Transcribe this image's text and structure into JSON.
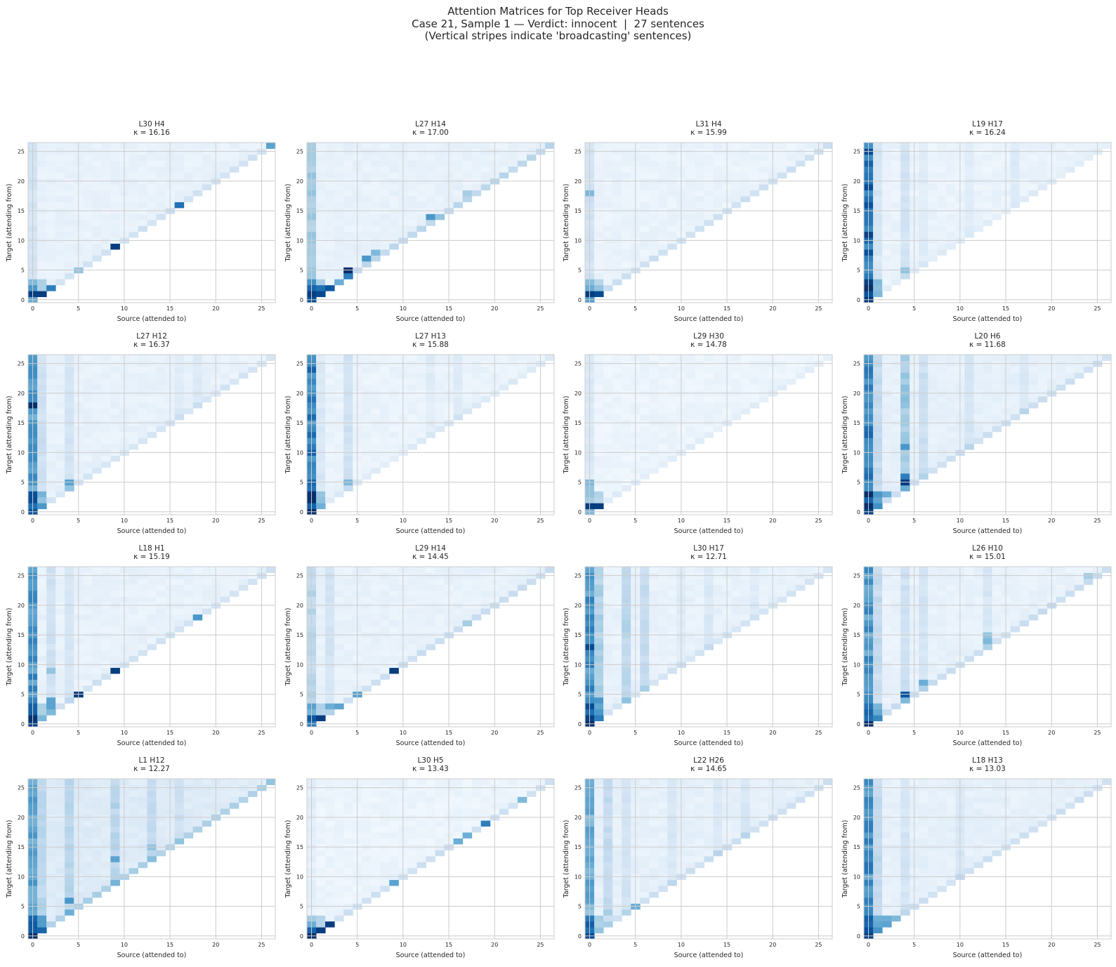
{
  "figure": {
    "title_lines": [
      "Attention Matrices for Top Receiver Heads",
      "Case 21, Sample 1 — Verdict: innocent  |  27 sentences",
      "(Vertical stripes indicate 'broadcasting' sentences)"
    ]
  },
  "chart_data": {
    "type": "heatmap",
    "colormap": "Blues",
    "n_sentences": 27,
    "xlabel": "Source (attended to)",
    "ylabel": "Target (attending from)",
    "ticks": [
      0,
      5,
      10,
      15,
      20,
      25
    ],
    "tick_labels": [
      "0",
      "5",
      "10",
      "15",
      "20",
      "25"
    ],
    "axis_range": [
      -0.5,
      26.5
    ],
    "value_range": [
      0,
      1
    ],
    "mask": "lower-triangular (source ≤ target)",
    "grid": true,
    "panels": [
      {
        "title": "L30 H4",
        "kappa_label": "κ = 16.16",
        "kappa": 16.16,
        "base": 0.05,
        "diag": 0.12,
        "stripes": [
          {
            "col": 0,
            "w": 0.12
          }
        ],
        "hot": [
          {
            "r": 1,
            "c": 0,
            "v": 0.95
          },
          {
            "r": 1,
            "c": 1,
            "v": 0.95
          },
          {
            "r": 2,
            "c": 0,
            "v": 0.6
          },
          {
            "r": 2,
            "c": 2,
            "v": 0.7
          },
          {
            "r": 5,
            "c": 5,
            "v": 0.4
          },
          {
            "r": 9,
            "c": 9,
            "v": 0.95
          },
          {
            "r": 16,
            "c": 16,
            "v": 0.75
          },
          {
            "r": 26,
            "c": 26,
            "v": 0.55
          }
        ]
      },
      {
        "title": "L27 H14",
        "kappa_label": "κ = 17.00",
        "kappa": 17.0,
        "base": 0.05,
        "diag": 0.2,
        "stripes": [
          {
            "col": 0,
            "w": 0.35
          }
        ],
        "hot": [
          {
            "r": 1,
            "c": 0,
            "v": 0.95
          },
          {
            "r": 1,
            "c": 1,
            "v": 0.9
          },
          {
            "r": 2,
            "c": 0,
            "v": 0.8
          },
          {
            "r": 2,
            "c": 1,
            "v": 0.75
          },
          {
            "r": 2,
            "c": 2,
            "v": 0.85
          },
          {
            "r": 3,
            "c": 3,
            "v": 0.5
          },
          {
            "r": 4,
            "c": 4,
            "v": 0.7
          },
          {
            "r": 5,
            "c": 4,
            "v": 1.0
          },
          {
            "r": 7,
            "c": 6,
            "v": 0.6
          },
          {
            "r": 8,
            "c": 7,
            "v": 0.45
          },
          {
            "r": 14,
            "c": 13,
            "v": 0.6
          },
          {
            "r": 14,
            "c": 14,
            "v": 0.4
          },
          {
            "r": 18,
            "c": 17,
            "v": 0.35
          }
        ]
      },
      {
        "title": "L31 H4",
        "kappa_label": "κ = 15.99",
        "kappa": 15.99,
        "base": 0.04,
        "diag": 0.15,
        "stripes": [
          {
            "col": 0,
            "w": 0.15
          }
        ],
        "hot": [
          {
            "r": 1,
            "c": 0,
            "v": 0.95
          },
          {
            "r": 1,
            "c": 1,
            "v": 0.9
          },
          {
            "r": 2,
            "c": 0,
            "v": 0.5
          },
          {
            "r": 2,
            "c": 1,
            "v": 0.4
          },
          {
            "r": 18,
            "c": 0,
            "v": 0.45
          }
        ]
      },
      {
        "title": "L19 H17",
        "kappa_label": "κ = 16.24",
        "kappa": 16.24,
        "base": 0.04,
        "diag": 0.05,
        "stripes": [
          {
            "col": 0,
            "w": 0.85
          },
          {
            "col": 1,
            "w": 0.12
          },
          {
            "col": 4,
            "w": 0.15
          },
          {
            "col": 6,
            "w": 0.06
          },
          {
            "col": 11,
            "w": 0.06
          },
          {
            "col": 16,
            "w": 0.08
          }
        ],
        "hot": [
          {
            "r": 5,
            "c": 4,
            "v": 0.4
          }
        ]
      },
      {
        "title": "L27 H12",
        "kappa_label": "κ = 16.37",
        "kappa": 16.37,
        "base": 0.05,
        "diag": 0.1,
        "stripes": [
          {
            "col": 0,
            "w": 0.6
          },
          {
            "col": 1,
            "w": 0.15
          },
          {
            "col": 4,
            "w": 0.12
          },
          {
            "col": 16,
            "w": 0.06
          },
          {
            "col": 18,
            "w": 0.06
          }
        ],
        "hot": [
          {
            "r": 18,
            "c": 0,
            "v": 1.0
          },
          {
            "r": 5,
            "c": 4,
            "v": 0.55
          },
          {
            "r": 1,
            "c": 1,
            "v": 0.6
          },
          {
            "r": 4,
            "c": 4,
            "v": 0.4
          }
        ]
      },
      {
        "title": "L27 H13",
        "kappa_label": "κ = 15.88",
        "kappa": 15.88,
        "base": 0.04,
        "diag": 0.06,
        "stripes": [
          {
            "col": 0,
            "w": 0.75
          },
          {
            "col": 1,
            "w": 0.1
          },
          {
            "col": 4,
            "w": 0.15
          },
          {
            "col": 13,
            "w": 0.06
          },
          {
            "col": 16,
            "w": 0.06
          }
        ],
        "hot": [
          {
            "r": 5,
            "c": 4,
            "v": 0.45
          }
        ]
      },
      {
        "title": "L29 H30",
        "kappa_label": "κ = 14.78",
        "kappa": 14.78,
        "base": 0.03,
        "diag": 0.05,
        "stripes": [
          {
            "col": 0,
            "w": 0.1
          }
        ],
        "hot": [
          {
            "r": 1,
            "c": 0,
            "v": 0.95
          },
          {
            "r": 1,
            "c": 1,
            "v": 0.95
          },
          {
            "r": 5,
            "c": 0,
            "v": 0.45
          },
          {
            "r": 4,
            "c": 0,
            "v": 0.4
          }
        ]
      },
      {
        "title": "L20 H6",
        "kappa_label": "κ = 11.68",
        "kappa": 11.68,
        "base": 0.06,
        "diag": 0.12,
        "stripes": [
          {
            "col": 0,
            "w": 0.7
          },
          {
            "col": 1,
            "w": 0.2
          },
          {
            "col": 4,
            "w": 0.35
          },
          {
            "col": 6,
            "w": 0.15
          },
          {
            "col": 11,
            "w": 0.1
          },
          {
            "col": 17,
            "w": 0.08
          }
        ],
        "hot": [
          {
            "r": 5,
            "c": 4,
            "v": 0.95
          },
          {
            "r": 6,
            "c": 4,
            "v": 0.7
          },
          {
            "r": 3,
            "c": 1,
            "v": 0.6
          },
          {
            "r": 3,
            "c": 2,
            "v": 0.5
          },
          {
            "r": 11,
            "c": 4,
            "v": 0.6
          }
        ]
      },
      {
        "title": "L18 H1",
        "kappa_label": "κ = 15.19",
        "kappa": 15.19,
        "base": 0.05,
        "diag": 0.12,
        "stripes": [
          {
            "col": 0,
            "w": 0.65
          },
          {
            "col": 2,
            "w": 0.15
          },
          {
            "col": 4,
            "w": 0.1
          }
        ],
        "hot": [
          {
            "r": 5,
            "c": 5,
            "v": 0.95
          },
          {
            "r": 9,
            "c": 9,
            "v": 0.95
          },
          {
            "r": 18,
            "c": 18,
            "v": 0.6
          },
          {
            "r": 4,
            "c": 2,
            "v": 0.55
          },
          {
            "r": 3,
            "c": 2,
            "v": 0.55
          },
          {
            "r": 9,
            "c": 2,
            "v": 0.4
          },
          {
            "r": 2,
            "c": 2,
            "v": 0.45
          }
        ]
      },
      {
        "title": "L29 H14",
        "kappa_label": "κ = 14.45",
        "kappa": 14.45,
        "base": 0.05,
        "diag": 0.15,
        "stripes": [
          {
            "col": 0,
            "w": 0.25
          },
          {
            "col": 2,
            "w": 0.12
          }
        ],
        "hot": [
          {
            "r": 1,
            "c": 0,
            "v": 0.85
          },
          {
            "r": 1,
            "c": 1,
            "v": 0.95
          },
          {
            "r": 3,
            "c": 2,
            "v": 0.5
          },
          {
            "r": 3,
            "c": 3,
            "v": 0.55
          },
          {
            "r": 5,
            "c": 5,
            "v": 0.55
          },
          {
            "r": 9,
            "c": 9,
            "v": 0.95
          },
          {
            "r": 17,
            "c": 17,
            "v": 0.35
          }
        ]
      },
      {
        "title": "L30 H17",
        "kappa_label": "κ = 12.71",
        "kappa": 12.71,
        "base": 0.05,
        "diag": 0.1,
        "stripes": [
          {
            "col": 0,
            "w": 0.65
          },
          {
            "col": 1,
            "w": 0.3
          },
          {
            "col": 4,
            "w": 0.25
          },
          {
            "col": 6,
            "w": 0.2
          },
          {
            "col": 10,
            "w": 0.06
          },
          {
            "col": 13,
            "w": 0.08
          },
          {
            "col": 18,
            "w": 0.06
          }
        ],
        "hot": [
          {
            "r": 4,
            "c": 1,
            "v": 0.6
          },
          {
            "r": 13,
            "c": 0,
            "v": 0.9
          }
        ]
      },
      {
        "title": "L26 H10",
        "kappa_label": "κ = 15.01",
        "kappa": 15.01,
        "base": 0.05,
        "diag": 0.15,
        "stripes": [
          {
            "col": 0,
            "w": 0.6
          },
          {
            "col": 1,
            "w": 0.2
          },
          {
            "col": 4,
            "w": 0.15
          },
          {
            "col": 6,
            "w": 0.12
          },
          {
            "col": 13,
            "w": 0.1
          }
        ],
        "hot": [
          {
            "r": 5,
            "c": 4,
            "v": 0.85
          },
          {
            "r": 7,
            "c": 6,
            "v": 0.5
          },
          {
            "r": 14,
            "c": 13,
            "v": 0.45
          },
          {
            "r": 15,
            "c": 13,
            "v": 0.4
          },
          {
            "r": 25,
            "c": 24,
            "v": 0.35
          },
          {
            "r": 4,
            "c": 4,
            "v": 0.45
          }
        ]
      },
      {
        "title": "L1 H12",
        "kappa_label": "κ = 12.27",
        "kappa": 12.27,
        "base": 0.1,
        "diag": 0.2,
        "stripes": [
          {
            "col": 0,
            "w": 0.5
          },
          {
            "col": 1,
            "w": 0.2
          },
          {
            "col": 4,
            "w": 0.2
          },
          {
            "col": 9,
            "w": 0.2
          },
          {
            "col": 13,
            "w": 0.15
          },
          {
            "col": 16,
            "w": 0.1
          }
        ],
        "hot": [
          {
            "r": 6,
            "c": 4,
            "v": 0.6
          },
          {
            "r": 13,
            "c": 9,
            "v": 0.55
          },
          {
            "r": 15,
            "c": 13,
            "v": 0.4
          },
          {
            "r": 26,
            "c": 26,
            "v": 0.4
          }
        ]
      },
      {
        "title": "L30 H5",
        "kappa_label": "κ = 13.43",
        "kappa": 13.43,
        "base": 0.03,
        "diag": 0.15,
        "stripes": [
          {
            "col": 0,
            "w": 0.05
          }
        ],
        "hot": [
          {
            "r": 0,
            "c": 0,
            "v": 1.0
          },
          {
            "r": 1,
            "c": 0,
            "v": 0.8
          },
          {
            "r": 1,
            "c": 1,
            "v": 0.95
          },
          {
            "r": 2,
            "c": 0,
            "v": 0.5
          },
          {
            "r": 2,
            "c": 2,
            "v": 0.95
          },
          {
            "r": 9,
            "c": 9,
            "v": 0.55
          },
          {
            "r": 16,
            "c": 16,
            "v": 0.5
          },
          {
            "r": 17,
            "c": 17,
            "v": 0.5
          },
          {
            "r": 19,
            "c": 19,
            "v": 0.7
          },
          {
            "r": 23,
            "c": 23,
            "v": 0.45
          }
        ]
      },
      {
        "title": "L22 H26",
        "kappa_label": "κ = 14.65",
        "kappa": 14.65,
        "base": 0.06,
        "diag": 0.12,
        "stripes": [
          {
            "col": 0,
            "w": 0.5
          },
          {
            "col": 2,
            "w": 0.2
          },
          {
            "col": 4,
            "w": 0.12
          },
          {
            "col": 9,
            "w": 0.08
          },
          {
            "col": 14,
            "w": 0.08
          },
          {
            "col": 17,
            "w": 0.08
          }
        ],
        "hot": [
          {
            "r": 5,
            "c": 5,
            "v": 0.5
          },
          {
            "r": 4,
            "c": 2,
            "v": 0.35
          },
          {
            "r": 1,
            "c": 1,
            "v": 0.4
          }
        ]
      },
      {
        "title": "L18 H13",
        "kappa_label": "κ = 13.03",
        "kappa": 13.03,
        "base": 0.06,
        "diag": 0.12,
        "stripes": [
          {
            "col": 0,
            "w": 0.65
          },
          {
            "col": 1,
            "w": 0.2
          },
          {
            "col": 4,
            "w": 0.1
          },
          {
            "col": 10,
            "w": 0.08
          }
        ],
        "hot": [
          {
            "r": 2,
            "c": 2,
            "v": 0.55
          },
          {
            "r": 3,
            "c": 2,
            "v": 0.5
          },
          {
            "r": 3,
            "c": 3,
            "v": 0.45
          }
        ]
      }
    ]
  }
}
